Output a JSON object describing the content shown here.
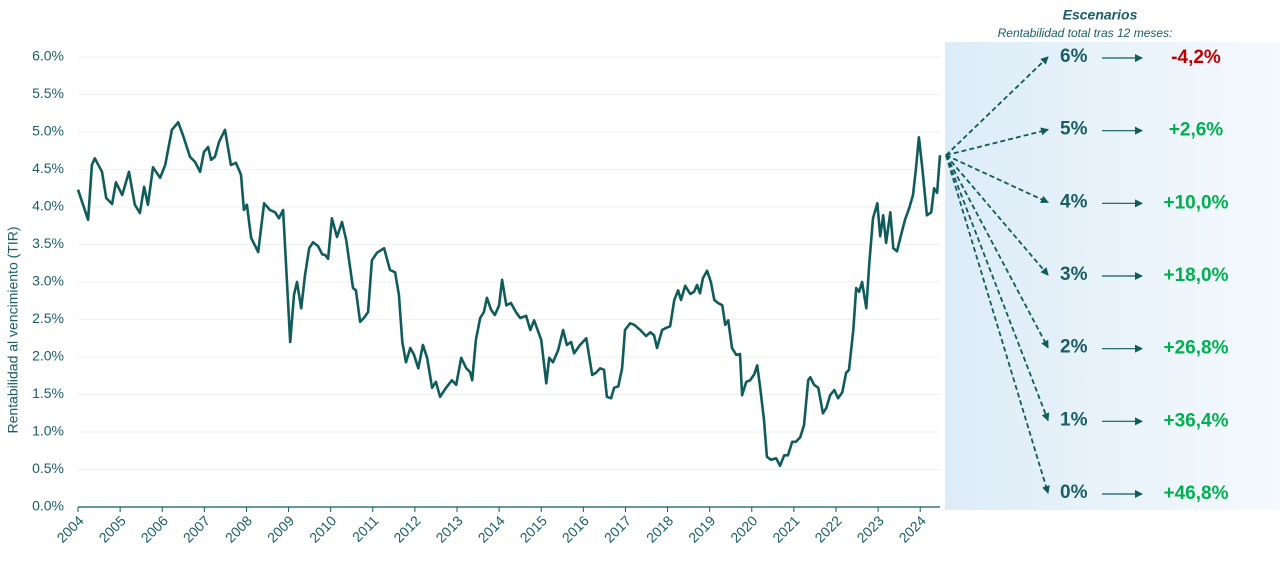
{
  "chart_data": {
    "type": "line",
    "y_axis_label": "Rentabilidad al vencimiento (TIR)",
    "x": [
      2004.0,
      2004.24,
      2004.33,
      2004.4,
      2004.57,
      2004.67,
      2004.81,
      2004.9,
      2005.05,
      2005.21,
      2005.35,
      2005.47,
      2005.57,
      2005.66,
      2005.78,
      2005.95,
      2006.07,
      2006.23,
      2006.38,
      2006.49,
      2006.66,
      2006.78,
      2006.9,
      2006.99,
      2007.09,
      2007.16,
      2007.25,
      2007.35,
      2007.49,
      2007.63,
      2007.75,
      2007.87,
      2007.94,
      2008.01,
      2008.11,
      2008.28,
      2008.42,
      2008.56,
      2008.68,
      2008.77,
      2008.87,
      2009.04,
      2009.13,
      2009.2,
      2009.3,
      2009.39,
      2009.49,
      2009.58,
      2009.7,
      2009.8,
      2009.87,
      2009.94,
      2010.03,
      2010.15,
      2010.27,
      2010.37,
      2010.53,
      2010.6,
      2010.7,
      2010.79,
      2010.89,
      2010.98,
      2011.1,
      2011.27,
      2011.41,
      2011.53,
      2011.62,
      2011.7,
      2011.79,
      2011.89,
      2011.98,
      2012.08,
      2012.19,
      2012.29,
      2012.41,
      2012.5,
      2012.6,
      2012.74,
      2012.88,
      2012.98,
      2013.1,
      2013.22,
      2013.31,
      2013.36,
      2013.45,
      2013.55,
      2013.64,
      2013.71,
      2013.81,
      2013.9,
      2014.0,
      2014.07,
      2014.17,
      2014.28,
      2014.4,
      2014.5,
      2014.64,
      2014.74,
      2014.83,
      2015.0,
      2015.12,
      2015.19,
      2015.28,
      2015.4,
      2015.52,
      2015.61,
      2015.71,
      2015.78,
      2015.92,
      2016.07,
      2016.21,
      2016.3,
      2016.4,
      2016.49,
      2016.56,
      2016.66,
      2016.73,
      2016.83,
      2016.92,
      2016.99,
      2017.11,
      2017.21,
      2017.35,
      2017.49,
      2017.59,
      2017.68,
      2017.75,
      2017.87,
      2017.97,
      2018.06,
      2018.16,
      2018.25,
      2018.32,
      2018.42,
      2018.54,
      2018.63,
      2018.7,
      2018.77,
      2018.84,
      2018.94,
      2019.03,
      2019.11,
      2019.2,
      2019.3,
      2019.37,
      2019.44,
      2019.53,
      2019.63,
      2019.72,
      2019.77,
      2019.87,
      2019.96,
      2020.06,
      2020.13,
      2020.2,
      2020.29,
      2020.36,
      2020.46,
      2020.58,
      2020.67,
      2020.77,
      2020.86,
      2020.96,
      2021.05,
      2021.15,
      2021.24,
      2021.34,
      2021.39,
      2021.48,
      2021.58,
      2021.69,
      2021.77,
      2021.86,
      2021.96,
      2022.05,
      2022.15,
      2022.24,
      2022.31,
      2022.41,
      2022.48,
      2022.55,
      2022.62,
      2022.72,
      2022.79,
      2022.88,
      2022.98,
      2023.05,
      2023.12,
      2023.19,
      2023.29,
      2023.36,
      2023.45,
      2023.55,
      2023.64,
      2023.74,
      2023.83,
      2023.9,
      2023.97,
      2024.05,
      2024.16,
      2024.26,
      2024.33,
      2024.4,
      2024.47
    ],
    "series": [
      {
        "name": "TIR",
        "color": "#0f5c5a",
        "values": [
          4.23,
          3.83,
          4.56,
          4.65,
          4.47,
          4.12,
          4.04,
          4.33,
          4.16,
          4.47,
          4.03,
          3.92,
          4.27,
          4.03,
          4.53,
          4.39,
          4.56,
          5.03,
          5.13,
          4.96,
          4.67,
          4.6,
          4.47,
          4.73,
          4.8,
          4.63,
          4.67,
          4.87,
          5.03,
          4.56,
          4.59,
          4.43,
          3.96,
          4.03,
          3.59,
          3.4,
          4.05,
          3.96,
          3.93,
          3.85,
          3.96,
          2.2,
          2.83,
          3.0,
          2.65,
          3.09,
          3.45,
          3.53,
          3.48,
          3.37,
          3.36,
          3.31,
          3.85,
          3.6,
          3.8,
          3.56,
          2.92,
          2.89,
          2.47,
          2.52,
          2.6,
          3.29,
          3.39,
          3.45,
          3.16,
          3.13,
          2.83,
          2.2,
          1.93,
          2.12,
          2.03,
          1.85,
          2.16,
          1.99,
          1.59,
          1.67,
          1.47,
          1.59,
          1.69,
          1.63,
          1.99,
          1.85,
          1.8,
          1.69,
          2.23,
          2.52,
          2.6,
          2.79,
          2.63,
          2.56,
          2.69,
          3.03,
          2.69,
          2.72,
          2.6,
          2.52,
          2.55,
          2.36,
          2.49,
          2.23,
          1.65,
          1.99,
          1.93,
          2.09,
          2.36,
          2.16,
          2.2,
          2.05,
          2.16,
          2.25,
          1.76,
          1.79,
          1.85,
          1.83,
          1.47,
          1.45,
          1.59,
          1.61,
          1.85,
          2.36,
          2.45,
          2.43,
          2.36,
          2.28,
          2.33,
          2.29,
          2.12,
          2.36,
          2.39,
          2.41,
          2.76,
          2.89,
          2.76,
          2.95,
          2.84,
          2.87,
          2.96,
          2.85,
          3.05,
          3.15,
          3.0,
          2.76,
          2.72,
          2.69,
          2.43,
          2.49,
          2.12,
          2.03,
          2.04,
          1.49,
          1.67,
          1.69,
          1.77,
          1.89,
          1.59,
          1.16,
          0.67,
          0.63,
          0.65,
          0.55,
          0.69,
          0.69,
          0.87,
          0.87,
          0.93,
          1.09,
          1.69,
          1.73,
          1.63,
          1.59,
          1.25,
          1.32,
          1.49,
          1.56,
          1.45,
          1.53,
          1.79,
          1.83,
          2.36,
          2.92,
          2.87,
          3.0,
          2.65,
          3.25,
          3.85,
          4.05,
          3.61,
          3.89,
          3.52,
          3.93,
          3.45,
          3.41,
          3.64,
          3.83,
          3.99,
          4.16,
          4.52,
          4.93,
          4.52,
          3.89,
          3.93,
          4.25,
          4.19,
          4.69
        ]
      }
    ],
    "xlim": [
      2004,
      2024.47
    ],
    "xticks": [
      2004,
      2005,
      2006,
      2007,
      2008,
      2009,
      2010,
      2011,
      2012,
      2013,
      2014,
      2015,
      2016,
      2017,
      2018,
      2019,
      2020,
      2021,
      2022,
      2023,
      2024
    ],
    "ylim": [
      0,
      6
    ],
    "yticks": [
      {
        "value": 0,
        "label": "0.0%"
      },
      {
        "value": 0.5,
        "label": "0.5%"
      },
      {
        "value": 1,
        "label": "1.0%"
      },
      {
        "value": 1.5,
        "label": "1.5%"
      },
      {
        "value": 2,
        "label": "2.0%"
      },
      {
        "value": 2.5,
        "label": "2.5%"
      },
      {
        "value": 3,
        "label": "3.0%"
      },
      {
        "value": 3.5,
        "label": "3.5%"
      },
      {
        "value": 4,
        "label": "4.0%"
      },
      {
        "value": 4.5,
        "label": "4.5%"
      },
      {
        "value": 5,
        "label": "5.0%"
      },
      {
        "value": 5.5,
        "label": "5.5%"
      },
      {
        "value": 6,
        "label": "6.0%"
      }
    ],
    "grid": true,
    "scenarios": {
      "title": "Escenarios",
      "subtitle": "Rentabilidad total tras 12 meses:",
      "rates": [
        6,
        5,
        4,
        3,
        2,
        1,
        0
      ],
      "rate_labels": [
        "6%",
        "5%",
        "4%",
        "3%",
        "2%",
        "1%",
        "0%"
      ],
      "returns": [
        -4.2,
        2.6,
        10.0,
        18.0,
        26.8,
        36.4,
        46.8
      ],
      "value_labels": [
        "-4,2%",
        "+2,6%",
        "+10,0%",
        "+18,0%",
        "+26,8%",
        "+36,4%",
        "+46,8%"
      ],
      "return_colors": [
        "#c00000",
        "#00b050",
        "#00b050",
        "#00b050",
        "#00b050",
        "#00b050",
        "#00b050"
      ]
    }
  }
}
